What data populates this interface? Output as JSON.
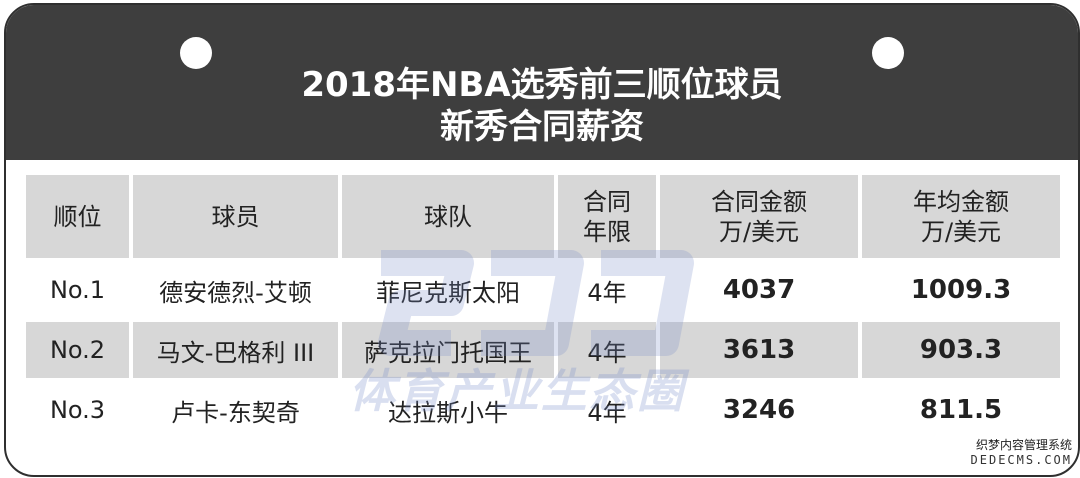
{
  "header": {
    "title_line1": "2018年NBA选秀前三顺位球员",
    "title_line2": "新秀合同薪资"
  },
  "table": {
    "columns": {
      "rank": "顺位",
      "player": "球员",
      "team": "球队",
      "term": [
        "合同",
        "年限"
      ],
      "contract": [
        "合同金额",
        "万/美元"
      ],
      "annual": [
        "年均金额",
        "万/美元"
      ]
    },
    "rows": [
      {
        "rank": "No.1",
        "player": "德安德烈-艾顿",
        "team": "菲尼克斯太阳",
        "term": "4年",
        "contract": "4037",
        "annual": "1009.3"
      },
      {
        "rank": "No.2",
        "player": "马文-巴格利 III",
        "team": "萨克拉门托国王",
        "term": "4年",
        "contract": "3613",
        "annual": "903.3"
      },
      {
        "rank": "No.3",
        "player": "卢卡-东契奇",
        "team": "达拉斯小牛",
        "term": "4年",
        "contract": "3246",
        "annual": "811.5"
      }
    ]
  },
  "watermark": {
    "text": "体育产业生态圈"
  },
  "footer": {
    "site_name": "织梦内容管理系统",
    "site_url": "DEDECMS.COM"
  },
  "colors": {
    "header_bg": "#3e3e3e",
    "row_shade": "#d7d7d7",
    "text": "#222222"
  }
}
